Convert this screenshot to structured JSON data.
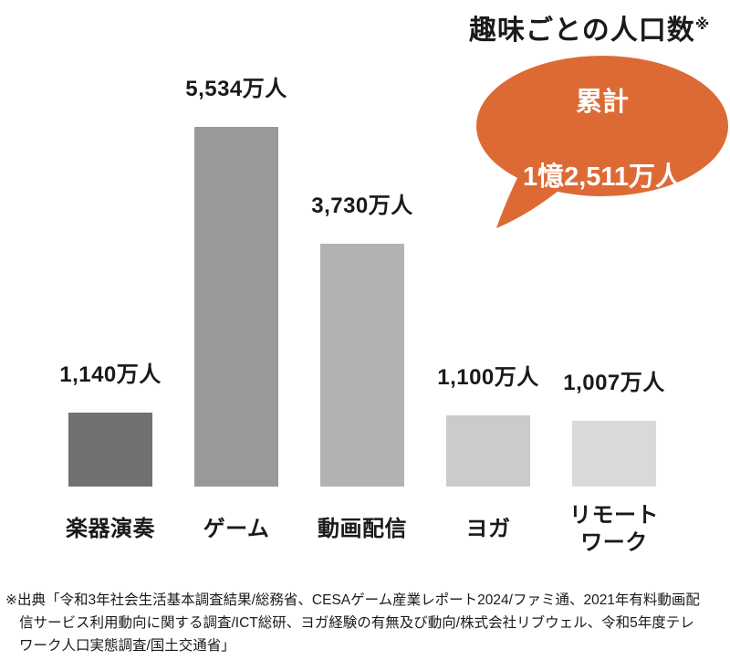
{
  "title": {
    "text": "趣味ごとの人口数",
    "note": "※"
  },
  "bubble": {
    "label": "累計",
    "value": "1憶2,511万人"
  },
  "colors": {
    "bubble": "#DD6A35",
    "bubble_text": "#FFFFFF",
    "text": "#1A1A1A"
  },
  "chart_data": {
    "type": "bar",
    "title": "趣味ごとの人口数",
    "categories": [
      "楽器演奏",
      "ゲーム",
      "動画配信",
      "ヨガ",
      "リモートワーク"
    ],
    "category_display": [
      "楽器演奏",
      "ゲーム",
      "動画配信",
      "ヨガ",
      "リモート\nワーク"
    ],
    "values": [
      1140,
      5534,
      3730,
      1100,
      1007
    ],
    "value_labels": [
      "1,140万人",
      "5,534万人",
      "3,730万人",
      "1,100万人",
      "1,007万人"
    ],
    "bar_colors": [
      "#717171",
      "#999999",
      "#b2b2b2",
      "#cbcbcb",
      "#d9d9d9"
    ],
    "unit": "万人",
    "annotation_total": "累計 1憶2,511万人",
    "ylim": [
      0,
      5534
    ],
    "grid": false,
    "legend": "none"
  },
  "footer": {
    "lines": [
      "※出典「令和3年社会生活基本調査結果/総務省、CESAゲーム産業レポート2024/ファミ通、2021年有料動画配",
      "信サービス利用動向に関する調査/ICT総研、ヨガ経験の有無及び動向/株式会社リブウェル、令和5年度テレ",
      "ワーク人口実態調査/国土交通省」"
    ]
  }
}
